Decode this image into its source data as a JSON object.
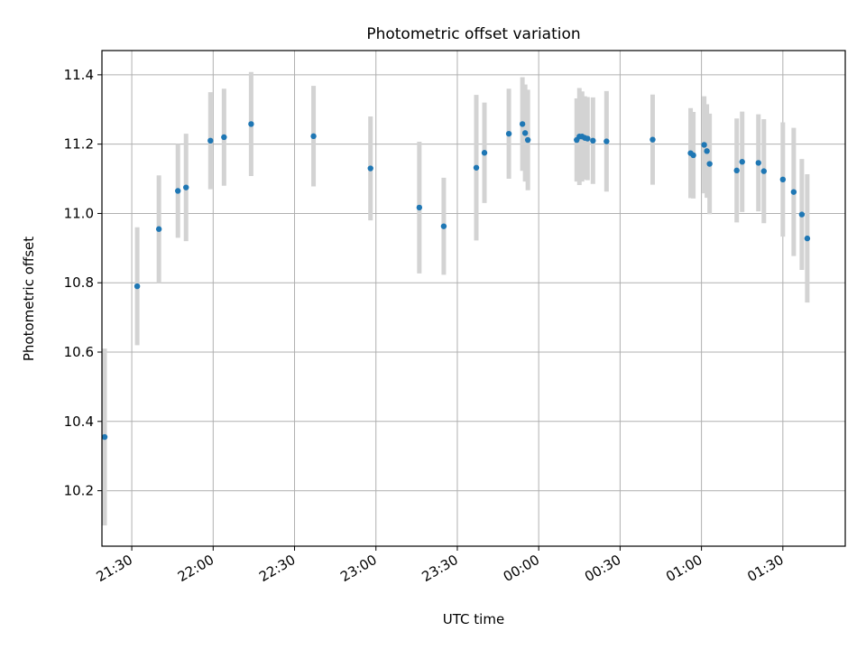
{
  "chart_data": {
    "type": "scatter",
    "title": "Photometric offset variation",
    "xlabel": "UTC time",
    "ylabel": "Photometric offset",
    "grid": true,
    "x_unit": "UTC time (HH:MM), points after midnight fall on the next day",
    "xlim": [
      "21:19",
      "01:53"
    ],
    "ylim": [
      10.04,
      11.47
    ],
    "x_ticks": [
      "21:30",
      "22:00",
      "22:30",
      "23:00",
      "23:30",
      "00:00",
      "00:30",
      "01:00",
      "01:30"
    ],
    "y_ticks": [
      "10.2",
      "10.4",
      "10.6",
      "10.8",
      "11.0",
      "11.2",
      "11.4"
    ],
    "colors": {
      "marker": "#1f77b4",
      "errorbar": "#d3d3d3",
      "grid": "#b0b0b0"
    },
    "points": [
      {
        "x": "21:20",
        "y": 10.355,
        "err": 0.255
      },
      {
        "x": "21:32",
        "y": 10.79,
        "err": 0.17
      },
      {
        "x": "21:40",
        "y": 10.955,
        "err": 0.155
      },
      {
        "x": "21:47",
        "y": 11.065,
        "err": 0.135
      },
      {
        "x": "21:50",
        "y": 11.075,
        "err": 0.155
      },
      {
        "x": "21:59",
        "y": 11.21,
        "err": 0.14
      },
      {
        "x": "22:04",
        "y": 11.22,
        "err": 0.14
      },
      {
        "x": "22:14",
        "y": 11.258,
        "err": 0.15
      },
      {
        "x": "22:37",
        "y": 11.223,
        "err": 0.145
      },
      {
        "x": "22:58",
        "y": 11.13,
        "err": 0.15
      },
      {
        "x": "23:16",
        "y": 11.017,
        "err": 0.19
      },
      {
        "x": "23:25",
        "y": 10.963,
        "err": 0.14
      },
      {
        "x": "23:37",
        "y": 11.132,
        "err": 0.21
      },
      {
        "x": "23:40",
        "y": 11.175,
        "err": 0.145
      },
      {
        "x": "23:49",
        "y": 11.23,
        "err": 0.13
      },
      {
        "x": "23:54",
        "y": 11.258,
        "err": 0.135
      },
      {
        "x": "23:55",
        "y": 11.232,
        "err": 0.14
      },
      {
        "x": "23:56",
        "y": 11.212,
        "err": 0.145
      },
      {
        "x": "00:14",
        "y": 11.212,
        "err": 0.12
      },
      {
        "x": "00:15",
        "y": 11.222,
        "err": 0.14
      },
      {
        "x": "00:16",
        "y": 11.222,
        "err": 0.13
      },
      {
        "x": "00:17",
        "y": 11.218,
        "err": 0.12
      },
      {
        "x": "00:18",
        "y": 11.216,
        "err": 0.12
      },
      {
        "x": "00:20",
        "y": 11.21,
        "err": 0.125
      },
      {
        "x": "00:25",
        "y": 11.208,
        "err": 0.145
      },
      {
        "x": "00:42",
        "y": 11.213,
        "err": 0.13
      },
      {
        "x": "00:56",
        "y": 11.174,
        "err": 0.13
      },
      {
        "x": "00:57",
        "y": 11.168,
        "err": 0.125
      },
      {
        "x": "01:01",
        "y": 11.198,
        "err": 0.14
      },
      {
        "x": "01:02",
        "y": 11.18,
        "err": 0.135
      },
      {
        "x": "01:03",
        "y": 11.143,
        "err": 0.145
      },
      {
        "x": "01:13",
        "y": 11.124,
        "err": 0.15
      },
      {
        "x": "01:15",
        "y": 11.149,
        "err": 0.145
      },
      {
        "x": "01:21",
        "y": 11.146,
        "err": 0.14
      },
      {
        "x": "01:23",
        "y": 11.122,
        "err": 0.15
      },
      {
        "x": "01:30",
        "y": 11.098,
        "err": 0.165
      },
      {
        "x": "01:34",
        "y": 11.062,
        "err": 0.185
      },
      {
        "x": "01:37",
        "y": 10.997,
        "err": 0.16
      },
      {
        "x": "01:39",
        "y": 10.928,
        "err": 0.185
      }
    ]
  }
}
